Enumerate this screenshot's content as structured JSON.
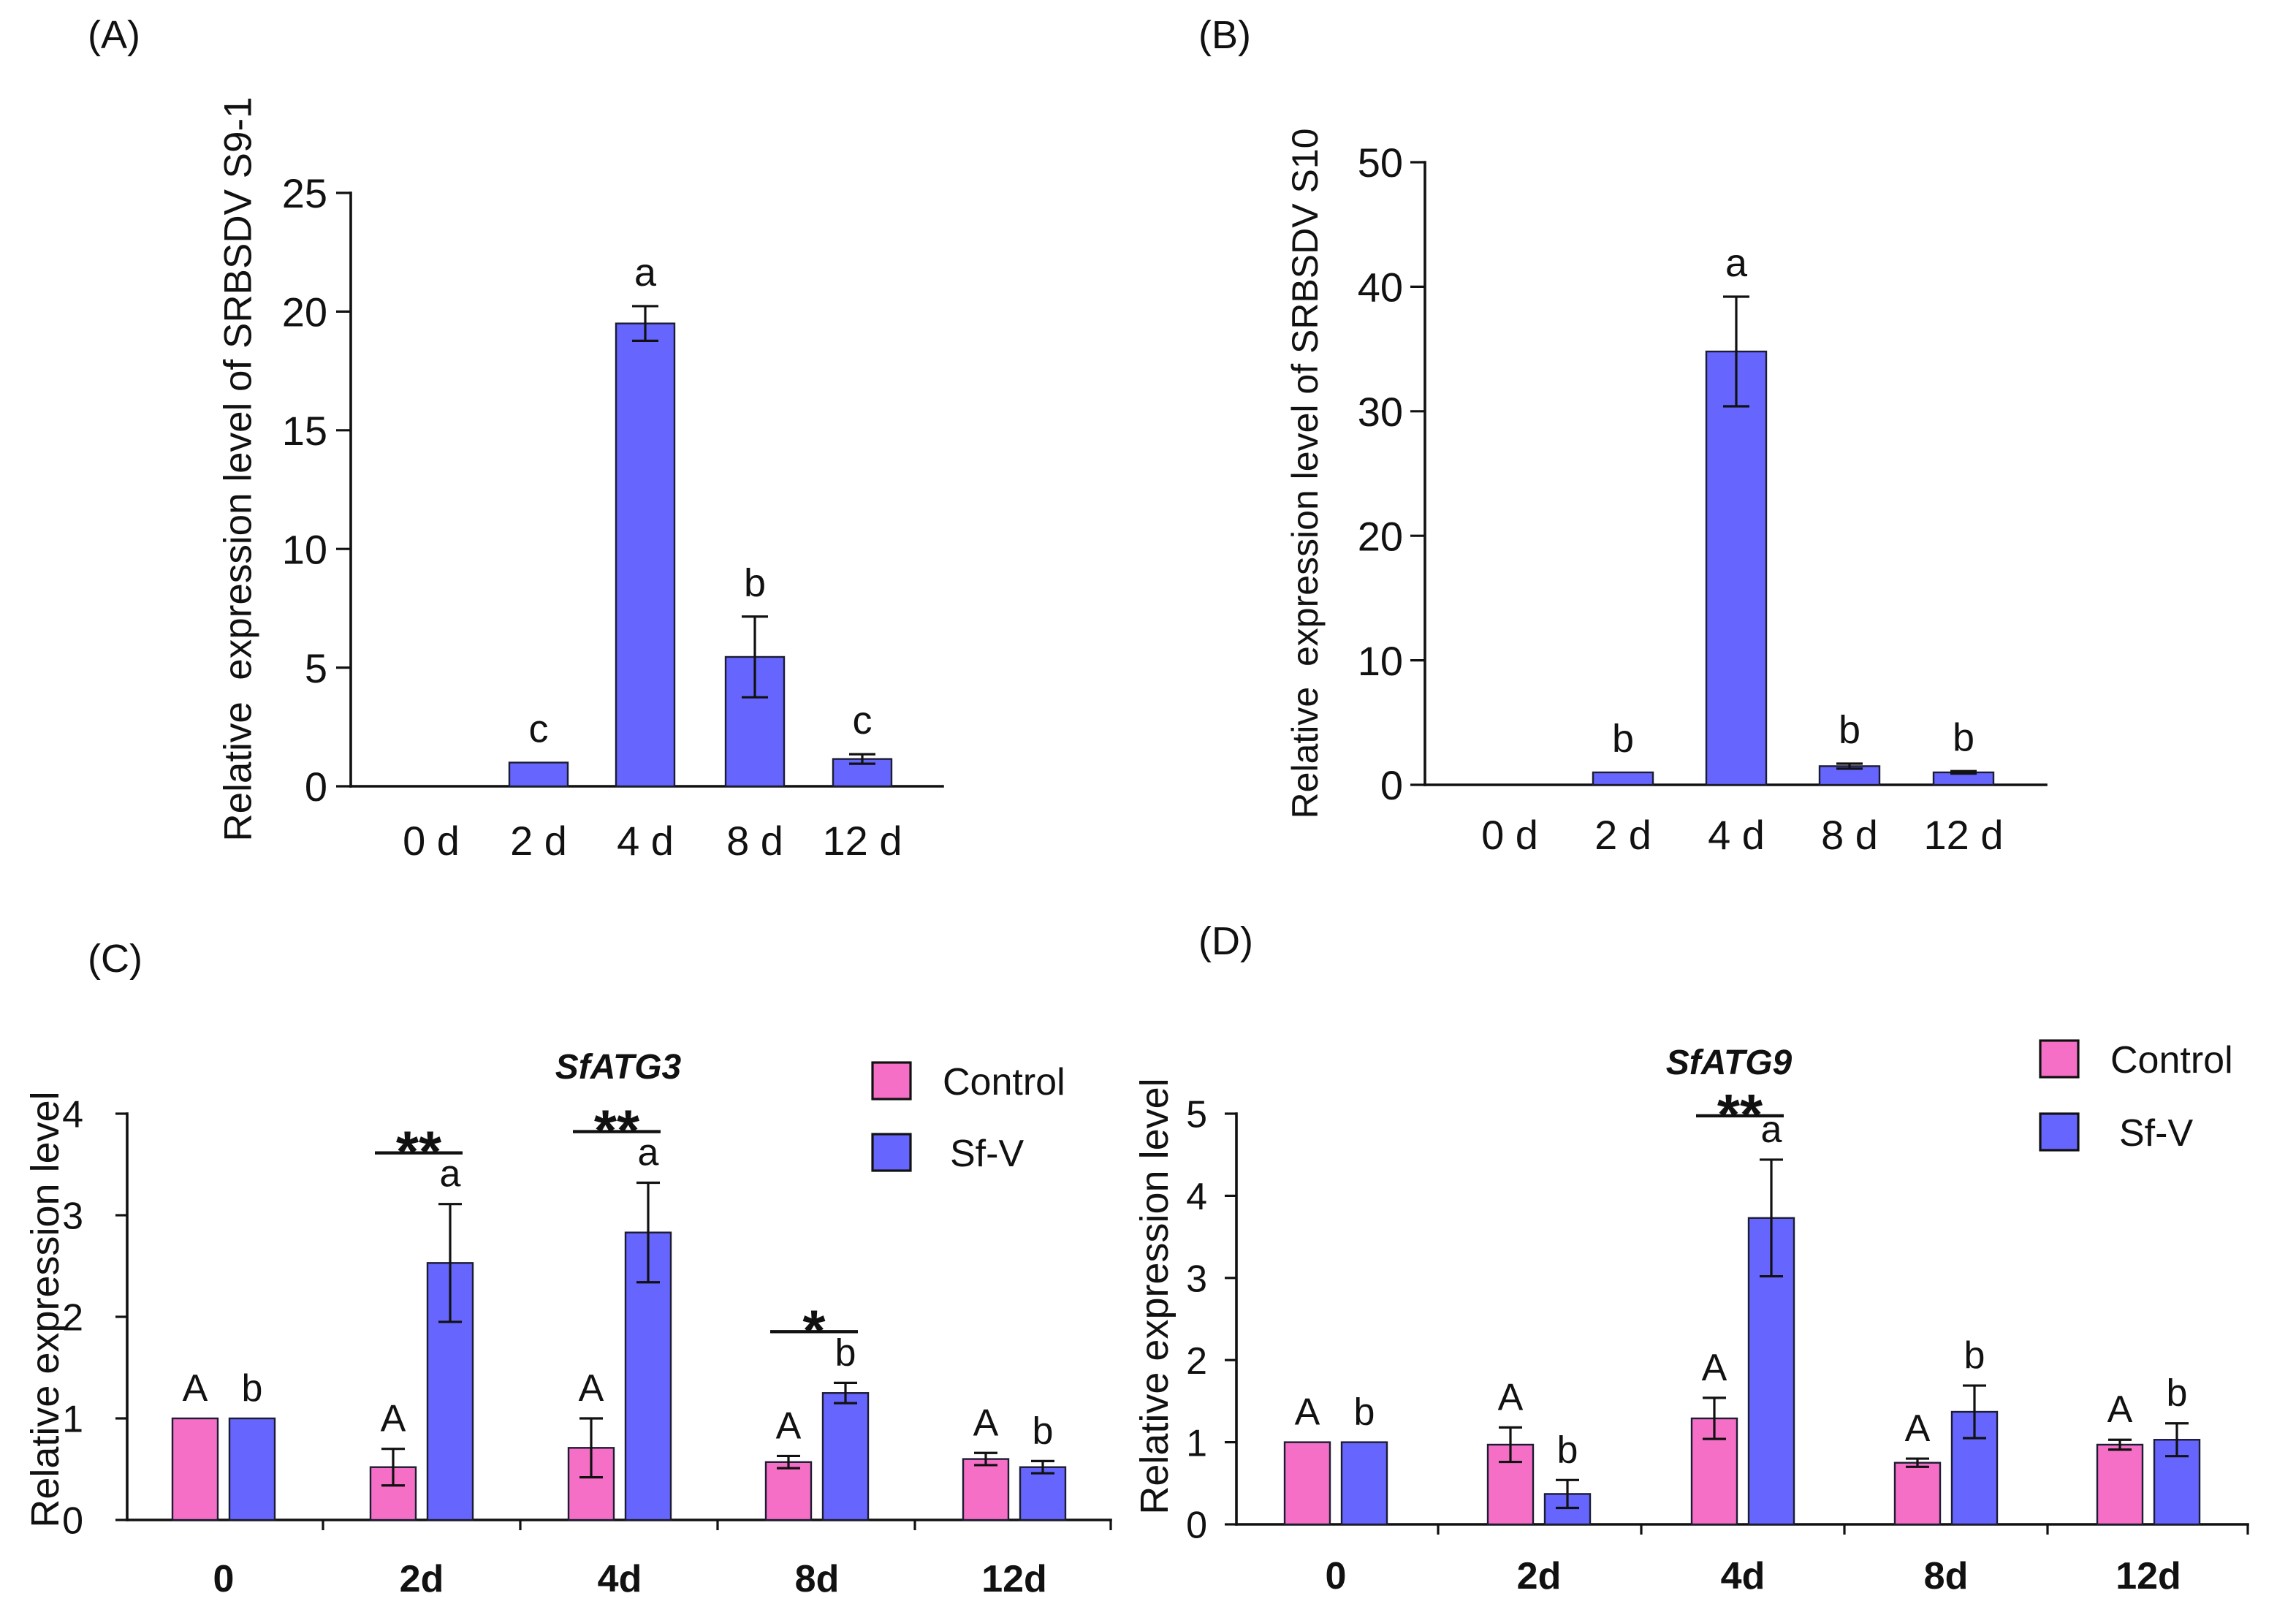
{
  "chart_data": [
    {
      "panel_label": "(A)",
      "type": "bar",
      "ylabel": "Relative  expression level of SRBSDV S9-1",
      "ylim": [
        0,
        25
      ],
      "yticks": [
        0,
        5,
        10,
        15,
        20,
        25
      ],
      "categories": [
        "0 d",
        "2 d",
        "4 d",
        "8 d",
        "12 d"
      ],
      "series": [
        {
          "values": [
            0,
            1.0,
            19.5,
            5.45,
            1.15
          ],
          "errors": [
            0,
            0,
            0.73,
            1.7,
            0.2
          ],
          "letters": [
            null,
            "c",
            "a",
            "b",
            "c"
          ],
          "color": "#6666FF"
        }
      ],
      "grid": false
    },
    {
      "panel_label": "(B)",
      "type": "bar",
      "ylabel": "Relative  expression level of SRBSDV S10",
      "ylim": [
        0,
        50
      ],
      "yticks": [
        0,
        10,
        20,
        30,
        40,
        50
      ],
      "categories": [
        "0 d",
        "2 d",
        "4 d",
        "8 d",
        "12 d"
      ],
      "series": [
        {
          "values": [
            0,
            1.0,
            34.8,
            1.5,
            1.0
          ],
          "errors": [
            0,
            0,
            4.4,
            0.2,
            0.1
          ],
          "letters": [
            null,
            "b",
            "a",
            "b",
            "b"
          ],
          "color": "#6666FF"
        }
      ],
      "grid": false
    },
    {
      "panel_label": "(C)",
      "type": "bar",
      "title": "SfATG3",
      "ylabel": "Relative expression level",
      "ylim": [
        0,
        4
      ],
      "yticks": [
        0,
        1,
        2,
        3,
        4
      ],
      "categories": [
        "0",
        "2d",
        "4d",
        "8d",
        "12d"
      ],
      "series": [
        {
          "name": "Control",
          "values": [
            1.0,
            0.52,
            0.71,
            0.57,
            0.6
          ],
          "errors": [
            0,
            0.18,
            0.29,
            0.06,
            0.06
          ],
          "letters": [
            "A",
            "A",
            "A",
            "A",
            "A"
          ],
          "color": "#F56FC6"
        },
        {
          "name": "Sf-V",
          "values": [
            1.0,
            2.53,
            2.83,
            1.25,
            0.52
          ],
          "errors": [
            0,
            0.58,
            0.49,
            0.1,
            0.06
          ],
          "letters": [
            "b",
            "a",
            "a",
            "b",
            "b"
          ],
          "color": "#6666FF"
        }
      ],
      "significance": [
        {
          "index": 1,
          "label": "**"
        },
        {
          "index": 2,
          "label": "**"
        },
        {
          "index": 3,
          "label": "*"
        }
      ],
      "legend": "top-right",
      "grid": false
    },
    {
      "panel_label": "(D)",
      "type": "bar",
      "title": "SfATG9",
      "ylabel": "Relative expression level",
      "ylim": [
        0,
        5
      ],
      "yticks": [
        0,
        1,
        2,
        3,
        4,
        5
      ],
      "categories": [
        "0",
        "2d",
        "4d",
        "8d",
        "12d"
      ],
      "series": [
        {
          "name": "Control",
          "values": [
            1.0,
            0.97,
            1.29,
            0.75,
            0.97
          ],
          "errors": [
            0,
            0.21,
            0.25,
            0.05,
            0.06
          ],
          "letters": [
            "A",
            "A",
            "A",
            "A",
            "A"
          ],
          "color": "#F56FC6"
        },
        {
          "name": "Sf-V",
          "values": [
            1.0,
            0.37,
            3.73,
            1.37,
            1.03
          ],
          "errors": [
            0,
            0.17,
            0.71,
            0.32,
            0.2
          ],
          "letters": [
            "b",
            "b",
            "a",
            "b",
            "b"
          ],
          "color": "#6666FF"
        }
      ],
      "significance": [
        {
          "index": 2,
          "label": "**"
        }
      ],
      "legend": "top-right",
      "grid": false
    }
  ]
}
